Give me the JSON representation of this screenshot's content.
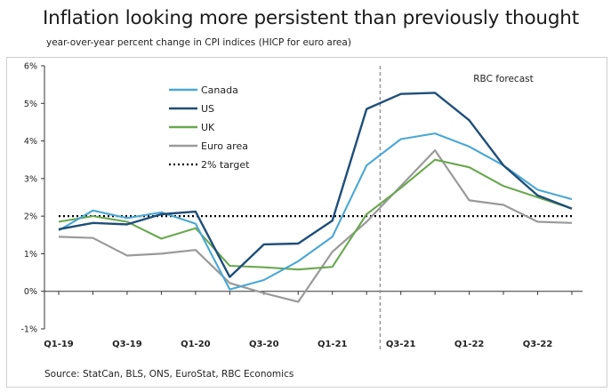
{
  "title": "Inflation looking more persistent than previously thought",
  "subtitle": "year-over-year percent change in CPI indices (HICP for euro area)",
  "source": "Source: StatCan, BLS, ONS, EuroStat, RBC Economics",
  "chart_data": {
    "type": "line",
    "xlabel": "",
    "ylabel": "",
    "ylim": [
      -1,
      6
    ],
    "y_ticks": [
      "-1%",
      "0%",
      "1%",
      "2%",
      "3%",
      "4%",
      "5%",
      "6%"
    ],
    "y_tick_values": [
      -1,
      0,
      1,
      2,
      3,
      4,
      5,
      6
    ],
    "x": [
      "Q1-19",
      "Q2-19",
      "Q3-19",
      "Q4-19",
      "Q1-20",
      "Q2-20",
      "Q3-20",
      "Q4-20",
      "Q1-21",
      "Q2-21",
      "Q3-21",
      "Q4-21",
      "Q1-22",
      "Q2-22",
      "Q3-22",
      "Q4-22"
    ],
    "x_tick_labels": [
      "Q1-19",
      "Q3-19",
      "Q1-20",
      "Q3-20",
      "Q1-21",
      "Q3-21",
      "Q1-22",
      "Q3-22"
    ],
    "x_tick_indices": [
      0,
      2,
      4,
      6,
      8,
      10,
      12,
      14
    ],
    "grid": false,
    "legend_position": "upper-left",
    "forecast_start_index": 9.5,
    "forecast_label": "RBC forecast",
    "series": [
      {
        "name": "Canada",
        "color": "#4aa7d4",
        "style": "solid",
        "values": [
          1.62,
          2.15,
          1.95,
          2.1,
          1.8,
          0.05,
          0.3,
          0.8,
          1.45,
          3.35,
          4.05,
          4.2,
          3.85,
          3.35,
          2.7,
          2.45
        ]
      },
      {
        "name": "US",
        "color": "#1f4e79",
        "style": "solid",
        "values": [
          1.65,
          1.82,
          1.78,
          2.05,
          2.12,
          0.38,
          1.25,
          1.27,
          1.88,
          4.85,
          5.25,
          5.28,
          4.55,
          3.35,
          2.55,
          2.2
        ]
      },
      {
        "name": "UK",
        "color": "#6aa84f",
        "style": "solid",
        "values": [
          1.85,
          2.0,
          1.85,
          1.4,
          1.68,
          0.68,
          0.64,
          0.58,
          0.65,
          2.05,
          2.75,
          3.5,
          3.3,
          2.8,
          2.5,
          2.2
        ]
      },
      {
        "name": "Euro area",
        "color": "#9a9a9a",
        "style": "solid",
        "values": [
          1.45,
          1.42,
          0.95,
          1.0,
          1.1,
          0.22,
          -0.05,
          -0.28,
          1.05,
          1.85,
          2.8,
          3.75,
          2.42,
          2.3,
          1.85,
          1.82
        ]
      },
      {
        "name": "2% target",
        "color": "#000000",
        "style": "dotted",
        "values": [
          2,
          2,
          2,
          2,
          2,
          2,
          2,
          2,
          2,
          2,
          2,
          2,
          2,
          2,
          2,
          2
        ]
      }
    ]
  }
}
